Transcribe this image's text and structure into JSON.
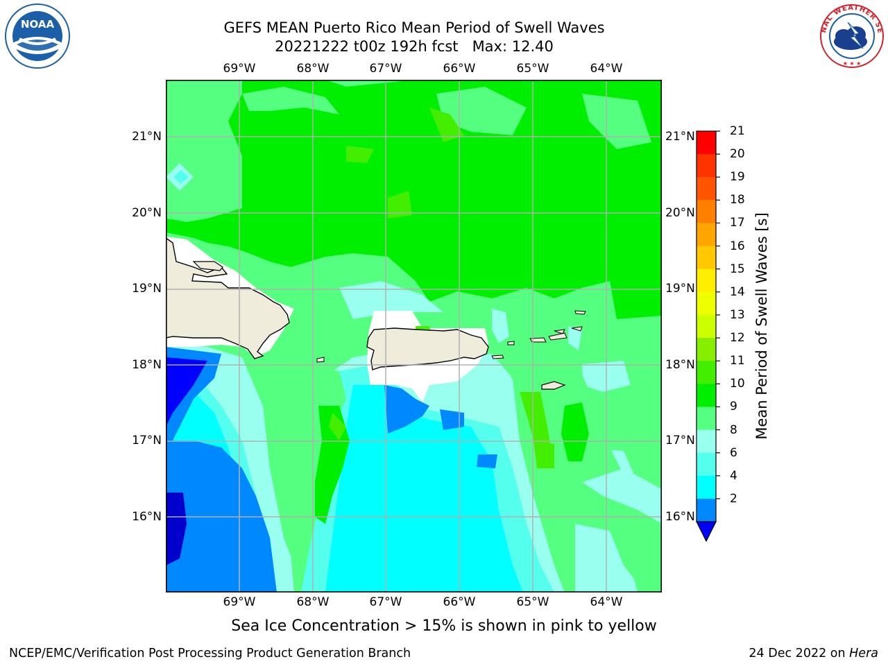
{
  "header": {
    "title_line1": "GEFS MEAN Puerto Rico Mean Period of Swell Waves",
    "title_line2": "20221222 t00z 192h fcst   Max: 12.40"
  },
  "logos": {
    "left": {
      "text": "NOAA",
      "ring_text": "NATIONAL OCEANIC AND ATMOSPHERIC ADMINISTRATION · U.S. DEPARTMENT OF COMMERCE",
      "icon": "noaa-logo",
      "color": "#1a5fa8"
    },
    "right": {
      "ring_text": "NATIONAL WEATHER SERVICE",
      "icon": "nws-logo",
      "color": "#d4202a"
    }
  },
  "map": {
    "lon_ticks": [
      "69°W",
      "68°W",
      "67°W",
      "66°W",
      "65°W",
      "64°W"
    ],
    "lat_ticks": [
      "21°N",
      "20°N",
      "19°N",
      "18°N",
      "17°N",
      "16°N"
    ],
    "land_color": "#efecdc",
    "grid_color": "#b0b0b0"
  },
  "colorbar": {
    "label": "Mean Period of Swell Waves [s]",
    "ticks": [
      "21",
      "20",
      "19",
      "18",
      "17",
      "16",
      "15",
      "14",
      "13",
      "12",
      "11",
      "10",
      "9",
      "8",
      "6",
      "4",
      "2"
    ],
    "colors_top_to_bottom": [
      "#ff0000",
      "#ff3300",
      "#ff5500",
      "#ff8000",
      "#ffa500",
      "#ffc800",
      "#ffee00",
      "#eeff00",
      "#ccff00",
      "#88ee00",
      "#44ee00",
      "#00ee00",
      "#55ff80",
      "#99ffee",
      "#55ffee",
      "#00ffff",
      "#0088ff"
    ],
    "under_color": "#0000ff"
  },
  "footer": {
    "subtitle": "Sea Ice Concentration > 15% is shown in pink to yellow",
    "left": "NCEP/EMC/Verification Post Processing Product Generation Branch",
    "right_prefix": "24 Dec 2022 on ",
    "right_host": "Hera"
  }
}
